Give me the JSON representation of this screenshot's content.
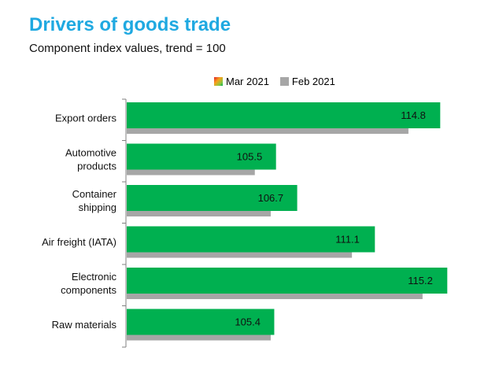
{
  "chart_data": {
    "type": "bar",
    "orientation": "horizontal",
    "title": "Drivers of goods trade",
    "subtitle": "Component index values, trend = 100",
    "categories": [
      [
        "Export orders"
      ],
      [
        "Automotive",
        "products"
      ],
      [
        "Container",
        "shipping"
      ],
      [
        "Air freight (IATA)"
      ],
      [
        "Electronic",
        "components"
      ],
      [
        "Raw materials"
      ]
    ],
    "series": [
      {
        "name": "Mar 2021",
        "values": [
          114.8,
          105.5,
          106.7,
          111.1,
          115.2,
          105.4
        ],
        "color": "#00b050"
      },
      {
        "name": "Feb 2021",
        "values": [
          113.0,
          104.3,
          105.2,
          109.8,
          113.8,
          105.2
        ],
        "color": "#a6a6a6"
      }
    ],
    "data_labels": [
      "114.8",
      "105.5",
      "106.7",
      "111.1",
      "115.2",
      "105.4"
    ],
    "xlim": [
      97.0,
      115.5
    ],
    "grid": false,
    "legend": "top"
  }
}
